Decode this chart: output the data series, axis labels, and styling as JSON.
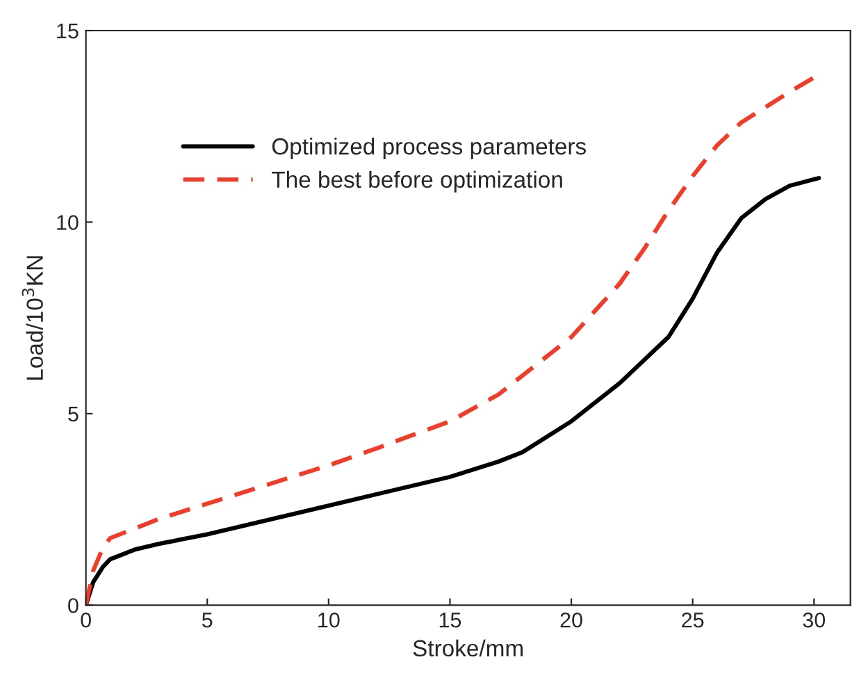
{
  "chart_data": {
    "type": "line",
    "xlabel": "Stroke/mm",
    "ylabel": "Load/10$^{3}$KN",
    "xlim": [
      0,
      31.5
    ],
    "ylim": [
      0,
      15
    ],
    "xticks": [
      0,
      5,
      10,
      15,
      20,
      25,
      30
    ],
    "yticks": [
      0,
      5,
      10,
      15
    ],
    "grid": false,
    "legend": "top left",
    "series": [
      {
        "name": "Optimized process parameters",
        "color": "#000000",
        "line_style": "solid",
        "x": [
          0,
          0.3,
          0.7,
          1,
          2,
          3,
          5,
          7,
          10,
          12,
          15,
          17,
          18,
          20,
          22,
          24,
          25,
          26,
          27,
          28,
          29,
          30.2
        ],
        "values": [
          0,
          0.6,
          1.0,
          1.2,
          1.45,
          1.6,
          1.85,
          2.15,
          2.6,
          2.9,
          3.35,
          3.75,
          4.0,
          4.8,
          5.8,
          7.0,
          8.0,
          9.2,
          10.1,
          10.6,
          10.95,
          11.15
        ]
      },
      {
        "name": "The best before optimization",
        "color": "#f03c28",
        "line_style": "dashed",
        "x": [
          0,
          0.3,
          0.7,
          1,
          2,
          3,
          5,
          7,
          10,
          12,
          15,
          17,
          18,
          20,
          22,
          23,
          24,
          25,
          26,
          27,
          28,
          29,
          30.2
        ],
        "values": [
          0,
          0.9,
          1.5,
          1.75,
          2.0,
          2.25,
          2.65,
          3.05,
          3.65,
          4.1,
          4.8,
          5.5,
          6.0,
          7.0,
          8.4,
          9.3,
          10.3,
          11.2,
          12.0,
          12.6,
          13.0,
          13.4,
          13.85
        ]
      }
    ]
  }
}
